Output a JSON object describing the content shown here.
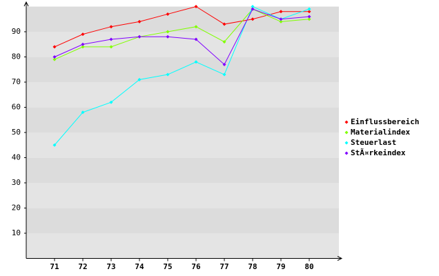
{
  "chart_data": {
    "type": "line",
    "x": [
      71,
      72,
      73,
      74,
      75,
      76,
      77,
      78,
      79,
      80
    ],
    "xlim": [
      70,
      81
    ],
    "xticks": [
      71,
      72,
      73,
      74,
      75,
      76,
      77,
      78,
      79,
      80
    ],
    "ylim": [
      0,
      100
    ],
    "yticks": [
      10,
      20,
      30,
      40,
      50,
      60,
      70,
      80,
      90
    ],
    "grid": true,
    "legend": "right",
    "series": [
      {
        "name": "Einflussbereich",
        "color": "#ff0000",
        "values": [
          84,
          89,
          92,
          94,
          97,
          100,
          93,
          95,
          98,
          98
        ]
      },
      {
        "name": "Materialindex",
        "color": "#80ff00",
        "values": [
          79,
          84,
          84,
          88,
          90,
          92,
          86,
          99,
          94,
          95
        ]
      },
      {
        "name": "Steuerlast",
        "color": "#00ffff",
        "values": [
          45,
          58,
          62,
          71,
          73,
          78,
          73,
          100,
          95,
          99
        ]
      },
      {
        "name": "StÃ¤rkeindex",
        "color": "#8000ff",
        "values": [
          80,
          85,
          87,
          88,
          88,
          87,
          77,
          99,
          95,
          96
        ]
      }
    ]
  }
}
